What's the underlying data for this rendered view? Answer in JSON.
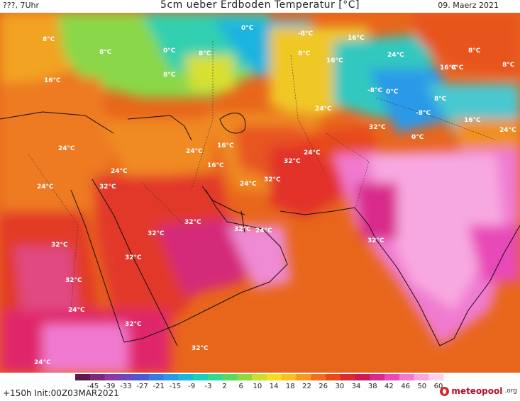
{
  "header": {
    "left": "???, 7Uhr",
    "title": "5cm ueber Erdboden Temperatur [°C]",
    "date": "09. Maerz 2021"
  },
  "footer": {
    "init": "+150h  Init:00Z03MAR2021",
    "brand": "meteopool",
    "brand_tld": ".org"
  },
  "colorbar": {
    "ticks": [
      "-45",
      "-39",
      "-33",
      "-27",
      "-21",
      "-15",
      "-9",
      "-3",
      "2",
      "6",
      "10",
      "14",
      "18",
      "22",
      "26",
      "30",
      "34",
      "38",
      "42",
      "46",
      "50",
      "60"
    ],
    "colors": [
      "#5b1a4a",
      "#7a2a78",
      "#8a3aa6",
      "#6a4ab8",
      "#4a5ad0",
      "#3a7ae0",
      "#2a9ae8",
      "#1ab8e0",
      "#18d0c0",
      "#30d890",
      "#5ad860",
      "#90d840",
      "#c8e030",
      "#f0e020",
      "#f8c020",
      "#f89a20",
      "#f07020",
      "#e84a1a",
      "#d82a30",
      "#c81a5a",
      "#d82a8a",
      "#e84ab8",
      "#f07ad0",
      "#f8a8e0",
      "#fcd0f0"
    ]
  },
  "map_labels": [
    {
      "text": "0°C",
      "v": 0
    },
    {
      "text": "-8°C",
      "v": -8
    },
    {
      "text": "16°C",
      "v": 16
    },
    {
      "text": "8°C",
      "v": 8
    },
    {
      "text": "8°C",
      "v": 8
    },
    {
      "text": "0°C",
      "v": 0
    },
    {
      "text": "8°C",
      "v": 8
    },
    {
      "text": "8°C",
      "v": 8
    },
    {
      "text": "16°C",
      "v": 16
    },
    {
      "text": "24°C",
      "v": 24
    },
    {
      "text": "8°C",
      "v": 8
    },
    {
      "text": "16°C",
      "v": 16
    },
    {
      "text": "-8°C",
      "v": -8
    },
    {
      "text": "0°C",
      "v": 0
    },
    {
      "text": "8°C",
      "v": 8
    },
    {
      "text": "24°C",
      "v": 24
    },
    {
      "text": "32°C",
      "v": 32
    },
    {
      "text": "24°C",
      "v": 24
    },
    {
      "text": "32°C",
      "v": 32
    },
    {
      "text": "24°C",
      "v": 24
    },
    {
      "text": "32°C",
      "v": 32
    },
    {
      "text": "24°C",
      "v": 24
    },
    {
      "text": "32°C",
      "v": 32
    },
    {
      "text": "16°C",
      "v": 16
    },
    {
      "text": "32°C",
      "v": 32
    },
    {
      "text": "24°C",
      "v": 24
    },
    {
      "text": "32°C",
      "v": 32
    },
    {
      "text": "32°C",
      "v": 32
    },
    {
      "text": "32°C",
      "v": 32
    },
    {
      "text": "24°C",
      "v": 24
    },
    {
      "text": "32°C",
      "v": 32
    },
    {
      "text": "24°C",
      "v": 24
    },
    {
      "text": "32°C",
      "v": 32
    },
    {
      "text": "24°C",
      "v": 24
    },
    {
      "text": "32°C",
      "v": 32
    },
    {
      "text": "24°C",
      "v": 24
    },
    {
      "text": "16°C",
      "v": 16
    },
    {
      "text": "32°C",
      "v": 32
    },
    {
      "text": "24°C",
      "v": 24
    },
    {
      "text": "32°C",
      "v": 32
    },
    {
      "text": "8°C",
      "v": 8
    },
    {
      "text": "0°C",
      "v": 0
    },
    {
      "text": "-8°C",
      "v": -8
    },
    {
      "text": "16°C",
      "v": 16
    },
    {
      "text": "24°C",
      "v": 24
    },
    {
      "text": "16°C",
      "v": 16
    },
    {
      "text": "8°C",
      "v": 8
    },
    {
      "text": "0°C",
      "v": 0
    }
  ]
}
